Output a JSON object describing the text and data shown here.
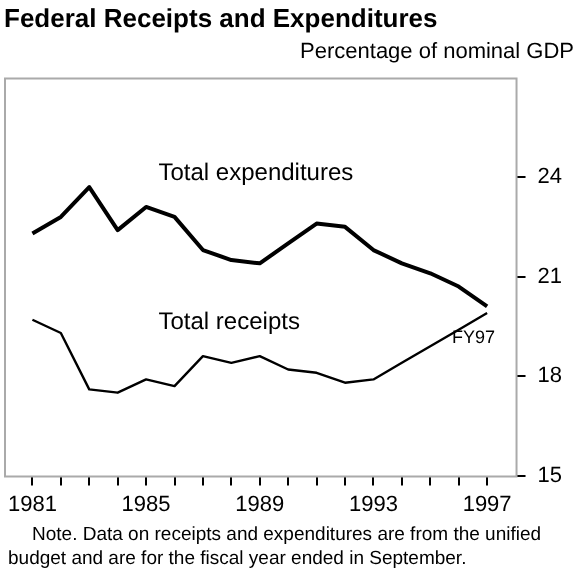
{
  "chart_data": {
    "type": "line",
    "title": "Federal Receipts and Expenditures",
    "subtitle": "Percentage of nominal GDP",
    "x": [
      1981,
      1982,
      1983,
      1984,
      1985,
      1986,
      1987,
      1988,
      1989,
      1990,
      1991,
      1992,
      1993,
      1994,
      1995,
      1996,
      1997
    ],
    "series": [
      {
        "name": "Total expenditures",
        "color": "#000000",
        "values": [
          22.3,
          22.8,
          23.7,
          22.4,
          23.1,
          22.8,
          21.8,
          21.5,
          21.4,
          22.0,
          22.6,
          22.5,
          21.8,
          21.4,
          21.1,
          20.7,
          20.1
        ]
      },
      {
        "name": "Total receipts",
        "color": "#000000",
        "values": [
          19.7,
          19.3,
          17.6,
          17.5,
          17.9,
          17.7,
          18.6,
          18.4,
          18.6,
          18.2,
          18.1,
          17.8,
          17.9,
          18.4,
          18.9,
          19.4,
          19.9
        ]
      }
    ],
    "xlim": [
      1980,
      1998
    ],
    "xticks": [
      1981,
      {
        "value": 1982,
        "label": null
      },
      {
        "value": 1983,
        "label": null
      },
      {
        "value": 1984,
        "label": null
      },
      1985,
      {
        "value": 1986,
        "label": null
      },
      {
        "value": 1987,
        "label": null
      },
      {
        "value": 1988,
        "label": null
      },
      1989,
      {
        "value": 1990,
        "label": null
      },
      {
        "value": 1991,
        "label": null
      },
      {
        "value": 1992,
        "label": null
      },
      1993,
      {
        "value": 1994,
        "label": null
      },
      {
        "value": 1995,
        "label": null
      },
      {
        "value": 1996,
        "label": null
      },
      1997
    ],
    "ylim": [
      15,
      27
    ],
    "yticks": [
      15,
      18,
      21,
      24
    ],
    "grid": false,
    "legend": false,
    "marker": "none",
    "line_style": "solid",
    "annotations": [
      {
        "text": "FY97",
        "x": 1997,
        "y": 19.9
      },
      "Note. Data on receipts and expenditures are from the unified budget and are for the fiscal year ended in September."
    ]
  }
}
